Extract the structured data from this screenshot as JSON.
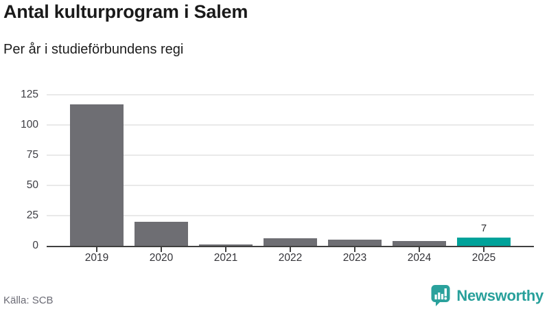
{
  "header": {
    "title": "Antal kulturprogram i Salem",
    "subtitle": "Per år i studieförbundens regi"
  },
  "chart_data": {
    "type": "bar",
    "title": "Antal kulturprogram i Salem",
    "subtitle": "Per år i studieförbundens regi",
    "categories": [
      "2019",
      "2020",
      "2021",
      "2022",
      "2023",
      "2024",
      "2025"
    ],
    "values": [
      117,
      20,
      1,
      6,
      5,
      4,
      7
    ],
    "xlabel": "",
    "ylabel": "",
    "ylim": [
      0,
      125
    ],
    "yticks": [
      0,
      25,
      50,
      75,
      100,
      125
    ],
    "grid": "horizontal",
    "legend": "none",
    "bar_default_color": "#6e6e73",
    "highlight": {
      "category": "2025",
      "color": "#00a29a",
      "value_label": "7"
    }
  },
  "footer": {
    "source": "Källa: SCB",
    "brand": "Newsworthy"
  },
  "colors": {
    "bar_default": "#6e6e73",
    "bar_highlight": "#00a29a",
    "axis_line": "#3f3f3f",
    "gridline": "#e9e9e9",
    "brand_teal": "#2aa19c",
    "title_text": "#1a1a1a",
    "axis_text": "#3d3d43",
    "source_text": "#6b6b75"
  }
}
